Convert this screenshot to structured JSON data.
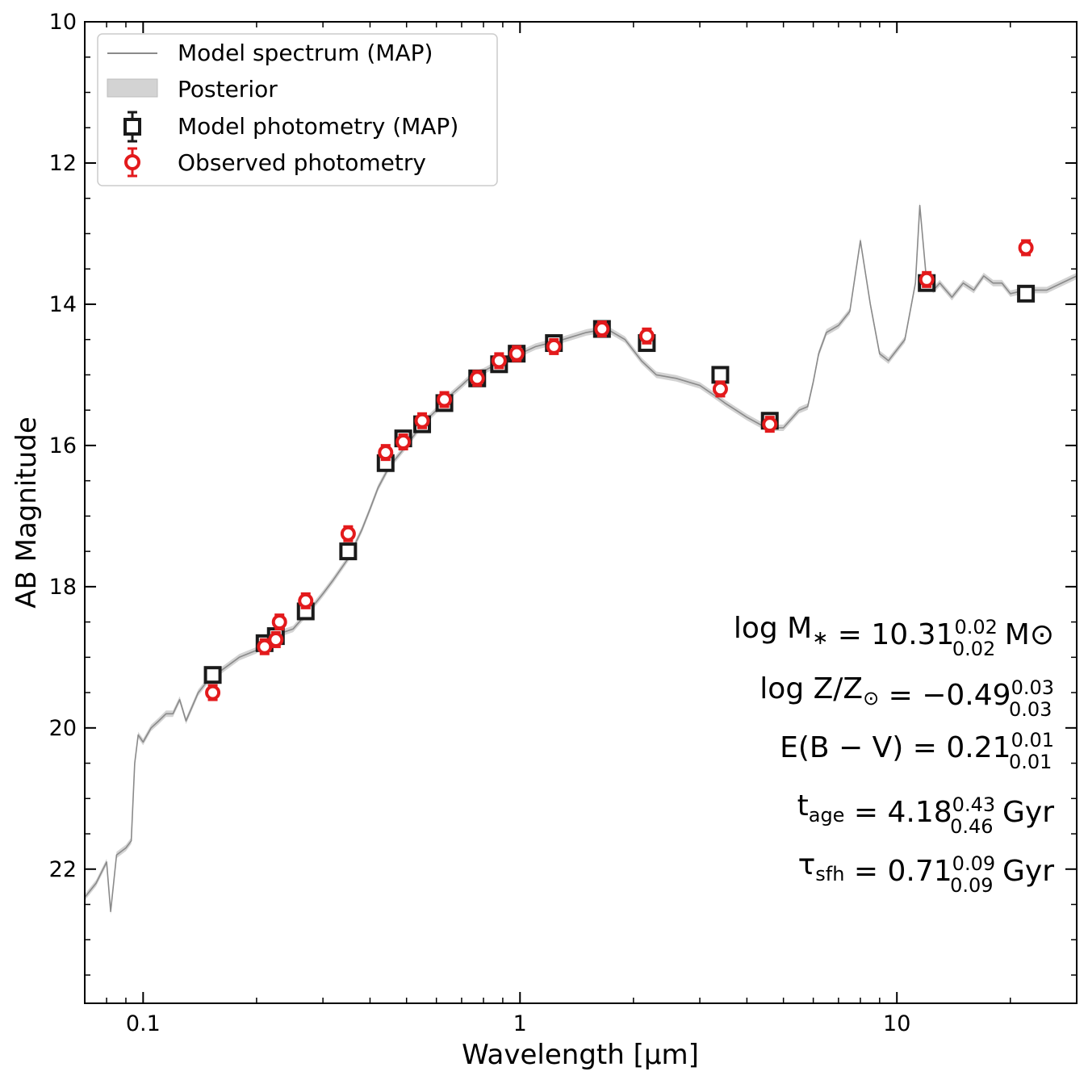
{
  "chart_data": {
    "type": "scatter",
    "xscale": "log",
    "xlabel": "Wavelength [μm]",
    "ylabel": "AB Magnitude",
    "xlim": [
      0.07,
      30
    ],
    "ylim": [
      23.9,
      10
    ],
    "y_inverted": true,
    "x_ticks": [
      0.1,
      1,
      10
    ],
    "x_tick_labels": [
      "0.1",
      "1",
      "10"
    ],
    "y_ticks": [
      10,
      12,
      14,
      16,
      18,
      20,
      22
    ],
    "y_tick_labels": [
      "10",
      "12",
      "14",
      "16",
      "18",
      "20",
      "22"
    ],
    "legend": {
      "placement": "top-left",
      "entries": [
        {
          "label": "Model spectrum (MAP)",
          "style": "line",
          "color": "#8a8a8a"
        },
        {
          "label": "Posterior",
          "style": "band",
          "color": "#d3d3d3"
        },
        {
          "label": "Model photometry (MAP)",
          "style": "square-errorbar",
          "color": "#1a1a1a"
        },
        {
          "label": "Observed photometry",
          "style": "circle-errorbar",
          "color": "#e31a1c"
        }
      ]
    },
    "series": [
      {
        "name": "Model spectrum (MAP)",
        "type": "line",
        "color": "#8a8a8a",
        "x": [
          0.07,
          0.075,
          0.08,
          0.082,
          0.085,
          0.09,
          0.093,
          0.095,
          0.097,
          0.1,
          0.105,
          0.11,
          0.115,
          0.12,
          0.125,
          0.13,
          0.14,
          0.15,
          0.16,
          0.18,
          0.2,
          0.22,
          0.25,
          0.28,
          0.3,
          0.32,
          0.35,
          0.38,
          0.4,
          0.42,
          0.45,
          0.5,
          0.55,
          0.6,
          0.65,
          0.7,
          0.75,
          0.8,
          0.9,
          1.0,
          1.1,
          1.3,
          1.5,
          1.7,
          1.9,
          2.1,
          2.3,
          2.6,
          3.0,
          3.3,
          3.5,
          4.0,
          4.5,
          5.0,
          5.5,
          5.8,
          6.0,
          6.2,
          6.5,
          7.0,
          7.5,
          8.0,
          8.5,
          9.0,
          9.5,
          10.5,
          11.2,
          11.5,
          12.0,
          12.5,
          13.0,
          14.0,
          15.0,
          16.0,
          17.0,
          18.0,
          19.0,
          20.0,
          22.0,
          25.0,
          30.0
        ],
        "y": [
          22.4,
          22.2,
          21.9,
          22.6,
          21.8,
          21.7,
          21.6,
          20.5,
          20.1,
          20.2,
          20.0,
          19.9,
          19.8,
          19.8,
          19.6,
          19.9,
          19.5,
          19.3,
          19.2,
          19.0,
          18.9,
          18.7,
          18.6,
          18.3,
          18.1,
          17.9,
          17.6,
          17.2,
          16.9,
          16.6,
          16.3,
          16.0,
          15.7,
          15.5,
          15.3,
          15.15,
          15.0,
          14.95,
          14.8,
          14.7,
          14.6,
          14.5,
          14.4,
          14.35,
          14.5,
          14.8,
          15.0,
          15.05,
          15.15,
          15.3,
          15.4,
          15.6,
          15.75,
          15.75,
          15.5,
          15.45,
          15.1,
          14.7,
          14.4,
          14.3,
          14.1,
          13.1,
          14.0,
          14.7,
          14.8,
          14.5,
          13.7,
          12.6,
          13.7,
          13.8,
          13.7,
          13.9,
          13.7,
          13.8,
          13.6,
          13.7,
          13.7,
          13.85,
          13.8,
          13.8,
          13.6
        ]
      },
      {
        "name": "Model photometry (MAP)",
        "type": "scatter",
        "marker": "square",
        "color": "#1a1a1a",
        "x": [
          0.153,
          0.21,
          0.225,
          0.27,
          0.35,
          0.44,
          0.49,
          0.55,
          0.63,
          0.77,
          0.88,
          0.98,
          1.23,
          1.65,
          2.17,
          3.4,
          4.6,
          12.0,
          22.0
        ],
        "y": [
          19.25,
          18.8,
          18.7,
          18.35,
          17.5,
          16.25,
          15.9,
          15.7,
          15.4,
          15.05,
          14.85,
          14.7,
          14.55,
          14.35,
          14.55,
          15.0,
          15.65,
          13.7,
          13.85
        ]
      },
      {
        "name": "Observed photometry",
        "type": "scatter",
        "marker": "circle",
        "color": "#e31a1c",
        "x": [
          0.153,
          0.21,
          0.225,
          0.23,
          0.27,
          0.35,
          0.44,
          0.49,
          0.55,
          0.63,
          0.77,
          0.88,
          0.98,
          1.23,
          1.65,
          2.17,
          3.4,
          4.6,
          12.0,
          22.0
        ],
        "y": [
          19.5,
          18.85,
          18.75,
          18.5,
          18.2,
          17.25,
          16.1,
          15.95,
          15.65,
          15.35,
          15.05,
          14.8,
          14.7,
          14.6,
          14.35,
          14.45,
          15.2,
          15.7,
          13.65,
          13.2
        ]
      }
    ],
    "annotations": [
      {
        "main": "log M",
        "sub": "∗",
        "rest": " = 10.31",
        "sup_val": "0.02",
        "sub_val": "0.02",
        "unit": " M⊙"
      },
      {
        "main": "log Z/Z",
        "sub": "⊙",
        "rest": " = −0.49",
        "sup_val": "0.03",
        "sub_val": "0.03",
        "unit": ""
      },
      {
        "main": "E(B − V)",
        "sub": "",
        "rest": " = 0.21",
        "sup_val": "0.01",
        "sub_val": "0.01",
        "unit": ""
      },
      {
        "main": "t",
        "sub": "age",
        "rest": " = 4.18",
        "sup_val": "0.43",
        "sub_val": "0.46",
        "unit": " Gyr"
      },
      {
        "main": "τ",
        "sub": "sfh",
        "rest": " = 0.71",
        "sup_val": "0.09",
        "sub_val": "0.09",
        "unit": " Gyr"
      }
    ]
  }
}
